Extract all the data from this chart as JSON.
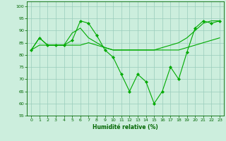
{
  "xlabel": "Humidité relative (%)",
  "xlim": [
    -0.5,
    23.5
  ],
  "ylim": [
    55,
    102
  ],
  "yticks": [
    55,
    60,
    65,
    70,
    75,
    80,
    85,
    90,
    95,
    100
  ],
  "xticks": [
    0,
    1,
    2,
    3,
    4,
    5,
    6,
    7,
    8,
    9,
    10,
    11,
    12,
    13,
    14,
    15,
    16,
    17,
    18,
    19,
    20,
    21,
    22,
    23
  ],
  "background_color": "#cceedd",
  "grid_color": "#99ccbb",
  "line_color": "#00aa00",
  "lines": [
    {
      "y": [
        82,
        87,
        84,
        84,
        84,
        86,
        94,
        93,
        88,
        82,
        79,
        72,
        65,
        72,
        69,
        60,
        65,
        75,
        70,
        81,
        91,
        94,
        93,
        94
      ],
      "markers": true,
      "style": "-"
    },
    {
      "y": [
        82,
        87,
        84,
        84,
        84,
        89,
        91,
        87,
        85,
        83,
        82,
        82,
        82,
        82,
        82,
        82,
        82,
        82,
        82,
        83,
        84,
        85,
        86,
        87
      ],
      "markers": false,
      "style": "-"
    },
    {
      "y": [
        82,
        84,
        84,
        84,
        84,
        84,
        84,
        85,
        84,
        83,
        82,
        82,
        82,
        82,
        82,
        82,
        83,
        84,
        85,
        87,
        90,
        93,
        94,
        94
      ],
      "markers": false,
      "style": "-"
    }
  ]
}
